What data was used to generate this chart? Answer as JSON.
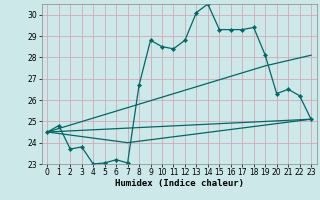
{
  "title": "",
  "xlabel": "Humidex (Indice chaleur)",
  "bg_color": "#cce8e8",
  "grid_color": "#d4a8b8",
  "line_color": "#006868",
  "xlim": [
    -0.5,
    23.5
  ],
  "ylim": [
    23,
    30.5
  ],
  "xticks": [
    0,
    1,
    2,
    3,
    4,
    5,
    6,
    7,
    8,
    9,
    10,
    11,
    12,
    13,
    14,
    15,
    16,
    17,
    18,
    19,
    20,
    21,
    22,
    23
  ],
  "yticks": [
    23,
    24,
    25,
    26,
    27,
    28,
    29,
    30
  ],
  "line1_x": [
    0,
    1,
    2,
    3,
    4,
    5,
    6,
    7,
    8,
    9,
    10,
    11,
    12,
    13,
    14,
    15,
    16,
    17,
    18,
    19,
    20,
    21,
    22,
    23
  ],
  "line1_y": [
    24.5,
    24.8,
    23.7,
    23.8,
    23.0,
    23.05,
    23.2,
    23.05,
    26.7,
    28.8,
    28.5,
    28.4,
    28.8,
    30.1,
    30.5,
    29.3,
    29.3,
    29.3,
    29.4,
    28.1,
    26.3,
    26.5,
    26.2,
    25.1
  ],
  "line2_x": [
    0,
    19,
    23
  ],
  "line2_y": [
    24.5,
    27.6,
    28.1
  ],
  "line3_x": [
    0,
    23
  ],
  "line3_y": [
    24.5,
    25.1
  ],
  "line4_x": [
    0,
    7,
    23
  ],
  "line4_y": [
    24.5,
    24.0,
    25.1
  ],
  "marker_x2": [
    19
  ],
  "marker_y2": [
    27.6
  ],
  "marker_x3": [],
  "marker_y3": []
}
